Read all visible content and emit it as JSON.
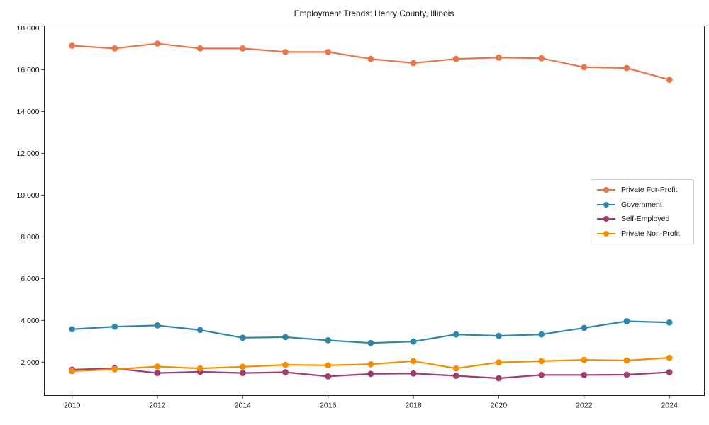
{
  "figure": {
    "background": "#ffffff",
    "axis_color": "#222222",
    "tick_label_color": "#111111"
  },
  "chart_data": {
    "type": "line",
    "title": "Employment Trends: Henry County, Illinois",
    "xlabel": "",
    "ylabel": "",
    "grid": false,
    "legend_position": "center right",
    "x": [
      2010,
      2011,
      2012,
      2013,
      2014,
      2015,
      2016,
      2017,
      2018,
      2019,
      2020,
      2021,
      2022,
      2023,
      2024
    ],
    "xticks": [
      2010,
      2012,
      2014,
      2016,
      2018,
      2020,
      2022,
      2024
    ],
    "yticks": [
      2000,
      4000,
      6000,
      8000,
      10000,
      12000,
      14000,
      16000,
      18000
    ],
    "xlim": [
      2009.35,
      2024.82
    ],
    "ylim": [
      400,
      18100
    ],
    "series": [
      {
        "name": "Private For-Profit",
        "color": "#E8764B",
        "values": [
          17150,
          17020,
          17250,
          17020,
          17020,
          16850,
          16850,
          16520,
          16320,
          16520,
          16580,
          16550,
          16120,
          16080,
          15520
        ]
      },
      {
        "name": "Government",
        "color": "#2E86AB",
        "values": [
          3580,
          3700,
          3760,
          3540,
          3170,
          3200,
          3050,
          2920,
          2990,
          3330,
          3260,
          3330,
          3640,
          3960,
          3900
        ]
      },
      {
        "name": "Self-Employed",
        "color": "#A23B72",
        "values": [
          1640,
          1700,
          1480,
          1540,
          1480,
          1520,
          1320,
          1440,
          1460,
          1350,
          1230,
          1390,
          1390,
          1400,
          1520
        ]
      },
      {
        "name": "Private Non-Profit",
        "color": "#F18F01",
        "values": [
          1570,
          1660,
          1790,
          1700,
          1780,
          1870,
          1850,
          1900,
          2050,
          1700,
          1990,
          2050,
          2110,
          2080,
          2210
        ]
      }
    ]
  }
}
